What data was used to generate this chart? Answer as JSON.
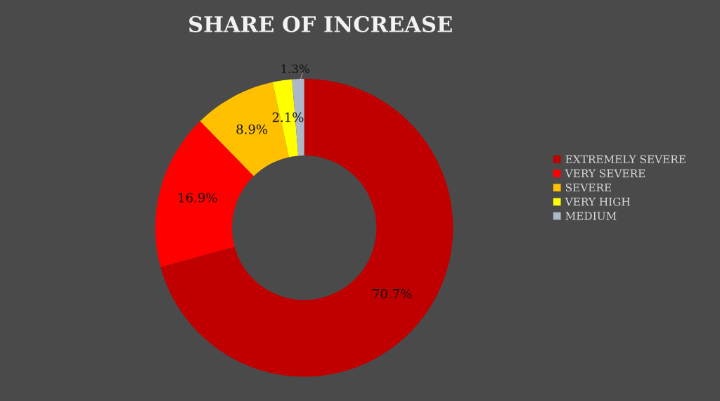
{
  "chart_data": {
    "type": "donut",
    "title": "SHARE OF INCREASE",
    "categories": [
      "EXTREMELY SEVERE",
      "VERY SEVERE",
      "SEVERE",
      "VERY HIGH",
      "MEDIUM"
    ],
    "values": [
      70.7,
      16.9,
      8.9,
      2.1,
      1.3
    ],
    "colors": [
      "#c00000",
      "#ff0000",
      "#ffc000",
      "#ffff00",
      "#adb9ca"
    ],
    "value_labels": [
      "70.7%",
      "16.9%",
      "8.9%",
      "2.1%",
      "1.3%"
    ],
    "legend": "right"
  }
}
